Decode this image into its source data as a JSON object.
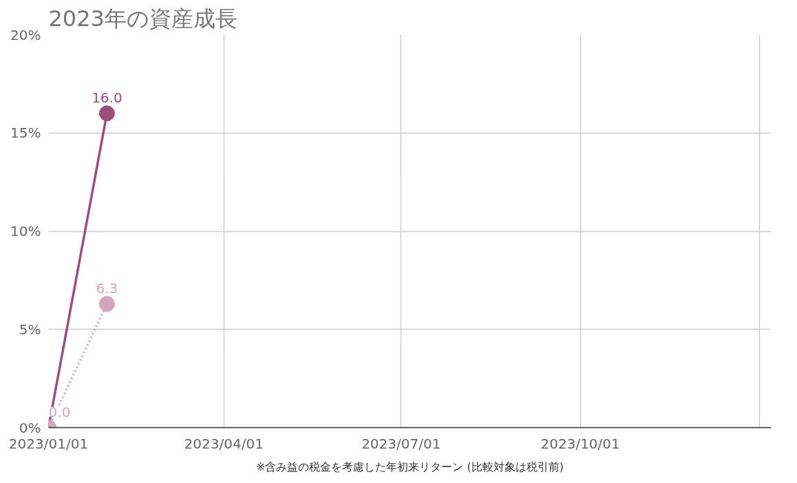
{
  "chart_data": {
    "type": "line",
    "title": "2023年の資産成長",
    "x": [
      "2023-01-01",
      "2023-01-31"
    ],
    "series": [
      {
        "color": "#9c4f79",
        "values": [
          0,
          16.0
        ],
        "value_labels": [
          null,
          "16.0"
        ],
        "line_style": "solid"
      },
      {
        "color": "#d4a6bd",
        "values": [
          0,
          6.3
        ],
        "value_labels": [
          "0.0",
          "6.3"
        ],
        "line_style": "dotted"
      }
    ],
    "xlim": [
      "2023-01-01",
      "2024-01-07"
    ],
    "xticks": [
      {
        "value": "2023-01-01",
        "label": "2023/01/01"
      },
      {
        "value": "2023-04-01",
        "label": "2023/04/01"
      },
      {
        "value": "2023-07-01",
        "label": "2023/07/01"
      },
      {
        "value": "2023-10-01",
        "label": "2023/10/01"
      },
      {
        "value": "2024-01-01",
        "label": null
      }
    ],
    "ylim": [
      0,
      20
    ],
    "yticks": [
      {
        "value": 0,
        "label": "0%"
      },
      {
        "value": 5,
        "label": "5%"
      },
      {
        "value": 10,
        "label": "10%"
      },
      {
        "value": 15,
        "label": "15%"
      },
      {
        "value": 20,
        "label": "20%"
      }
    ],
    "grid": true,
    "marker": "circle",
    "annotations": [
      "※含み益の税金を考慮した年初来リターン (比較対象は税引前)"
    ]
  }
}
